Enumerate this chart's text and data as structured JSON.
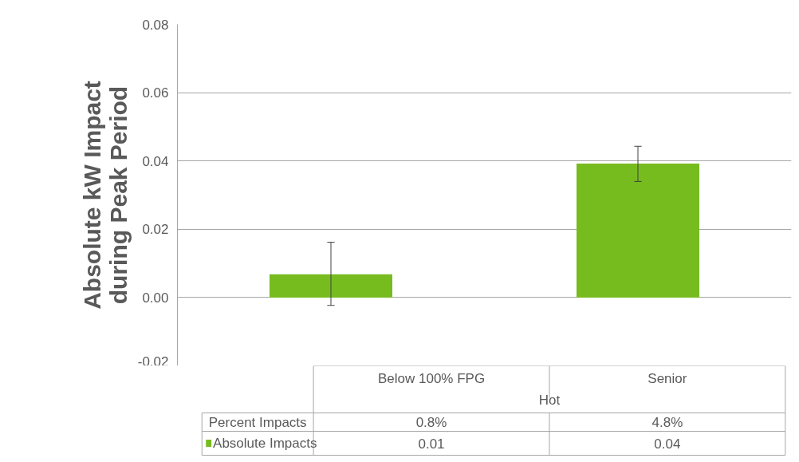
{
  "chart_data": {
    "type": "bar",
    "ylabel": "Absolute kW Impact during Peak Period",
    "xlabel": "Hot",
    "categories": [
      "Below 100% FPG",
      "Senior"
    ],
    "series": [
      {
        "name": "Absolute Impacts",
        "color": "#77bc1f",
        "values": [
          0.0068,
          0.0392
        ],
        "errors": [
          [
            -0.0023,
            0.0162
          ],
          [
            0.034,
            0.0443
          ]
        ],
        "value_labels": [
          "0.01",
          "0.04"
        ]
      }
    ],
    "annotations": [
      "Percent Impacts",
      "0.8%",
      "4.8%"
    ],
    "ylim": [
      -0.02,
      0.08
    ],
    "yticks": [
      {
        "value": -0.02,
        "label": "-0.02"
      },
      {
        "value": 0,
        "label": "0.00"
      },
      {
        "value": 0.02,
        "label": "0.02"
      },
      {
        "value": 0.04,
        "label": "0.04"
      },
      {
        "value": 0.06,
        "label": "0.06"
      },
      {
        "value": 0.08,
        "label": "0.08"
      }
    ],
    "grid": "y",
    "legend": "bottom"
  }
}
